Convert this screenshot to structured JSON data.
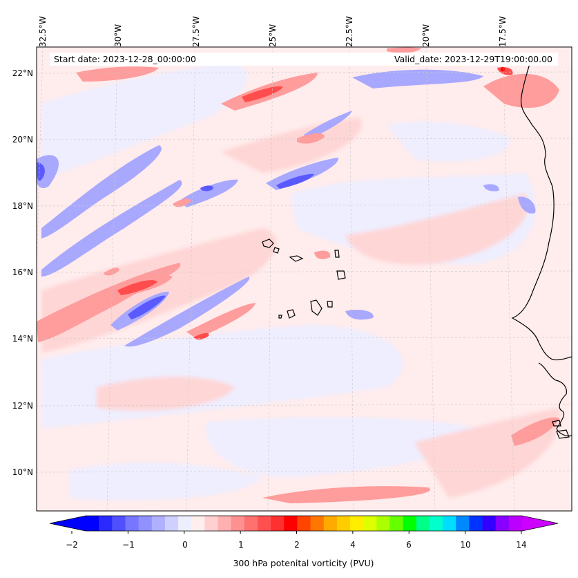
{
  "map": {
    "title_start": "Start date: 2023-12-28_00:00:00",
    "title_valid": "Valid_date: 2023-12-29T19:00:00.00",
    "longitude_labels": [
      "32.5°W",
      "30°W",
      "27.5°W",
      "25°W",
      "22.5°W",
      "20°W",
      "17.5°W"
    ],
    "latitude_labels": [
      "22°N",
      "20°N",
      "18°N",
      "16°N",
      "14°N",
      "12°N",
      "10°N"
    ],
    "region": "Eastern tropical North Atlantic, Cape Verde Islands and West African coast",
    "variable": "300 hPa potential vorticity"
  },
  "colorbar": {
    "label": "300 hPa potenital vorticity (PVU)",
    "tick_labels": [
      "−2",
      "−1",
      "0",
      "1",
      "2",
      "4",
      "6",
      "10",
      "14"
    ],
    "colors": [
      "#0000ff",
      "#2a2aff",
      "#5050ff",
      "#7676ff",
      "#9090ff",
      "#b0b0ff",
      "#d0d0ff",
      "#eeeeff",
      "#ffeeee",
      "#ffd0d0",
      "#ffb0b0",
      "#ff9090",
      "#ff7070",
      "#ff5050",
      "#ff3030",
      "#ff0000",
      "#ff4400",
      "#ff7700",
      "#ffaa00",
      "#ffcc00",
      "#ffee00",
      "#ddff00",
      "#aaff00",
      "#66ff00",
      "#00ff00",
      "#00ff88",
      "#00ffcc",
      "#00ddff",
      "#0088ff",
      "#0033ff",
      "#3300ff",
      "#8800ff",
      "#bb00ff"
    ],
    "extend_low": "#0000ff",
    "extend_high": "#cc00ff"
  }
}
